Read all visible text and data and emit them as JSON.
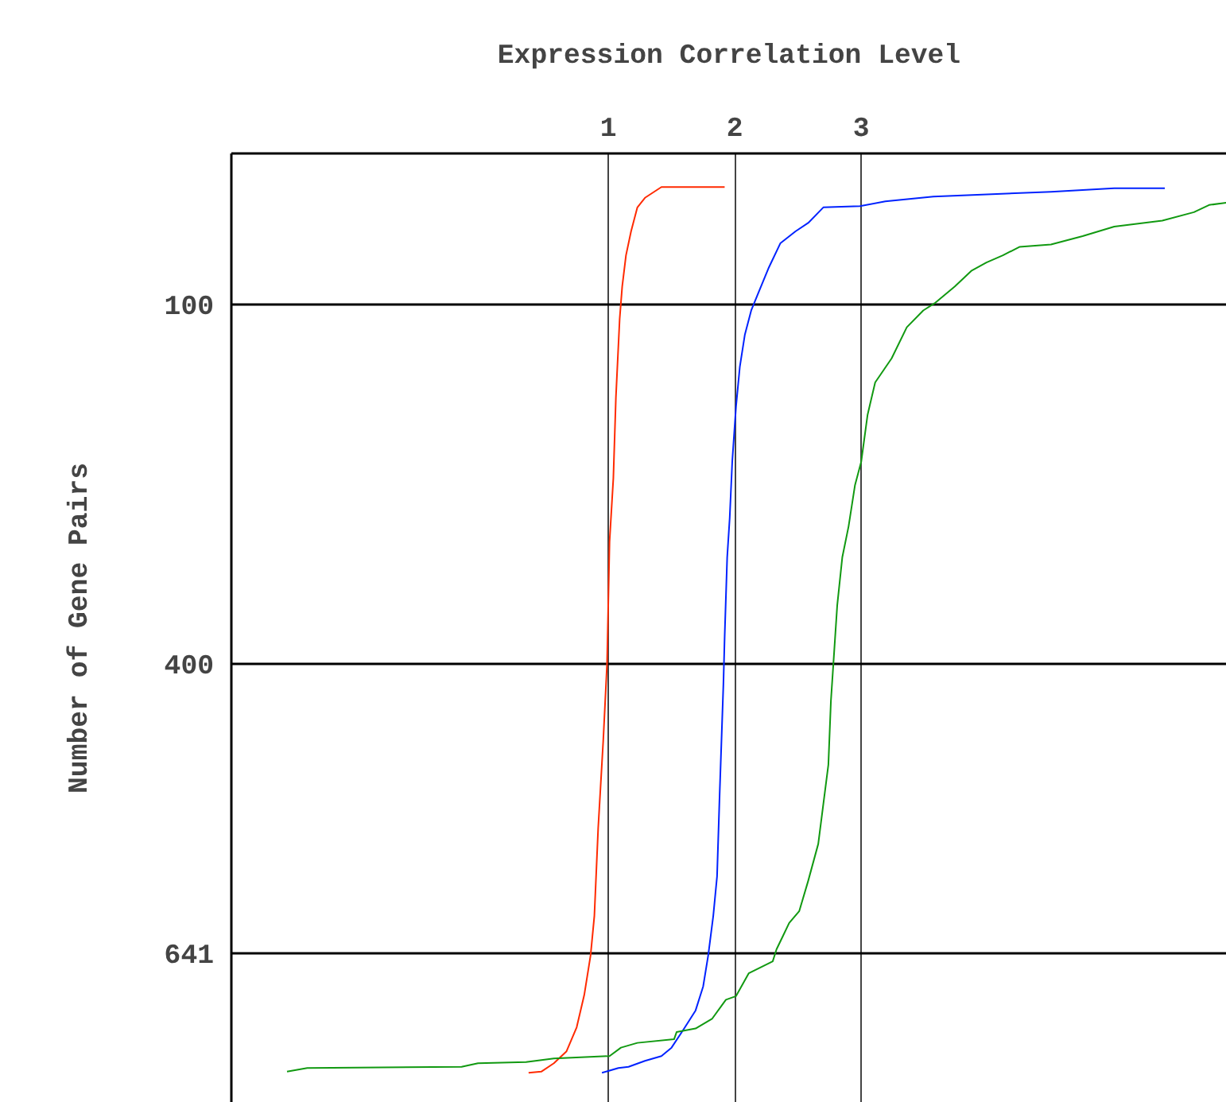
{
  "chart_data": {
    "type": "line",
    "xlabel": "Expression Correlation Level",
    "ylabel": "Number of Gene Pairs",
    "xlim": [
      -1.98,
      5.89
    ],
    "ylim": [
      766,
      -26
    ],
    "xticks": [
      1,
      2,
      3
    ],
    "yticks": [
      100,
      400,
      641
    ],
    "grid": true,
    "marker": "none",
    "line_style": "solid",
    "series": [
      {
        "color": "#ff2a00",
        "x": [
          0.37,
          0.47,
          0.57,
          0.67,
          0.75,
          0.81,
          0.86,
          0.89,
          0.92,
          0.96,
          0.99,
          1.01,
          1.04,
          1.06,
          1.09,
          1.11,
          1.14,
          1.18,
          1.23,
          1.29,
          1.42,
          1.92
        ],
        "values": [
          741,
          740,
          733,
          723,
          703,
          676,
          643,
          610,
          537,
          464,
          400,
          298,
          245,
          178,
          112,
          85,
          59,
          39,
          19,
          11,
          2,
          2
        ]
      },
      {
        "color": "#0022ff",
        "x": [
          0.95,
          1.08,
          1.16,
          1.29,
          1.42,
          1.5,
          1.6,
          1.69,
          1.75,
          1.79,
          1.83,
          1.86,
          1.88,
          1.91,
          1.92,
          1.94,
          1.96,
          1.98,
          2.01,
          2.04,
          2.08,
          2.13,
          2.18,
          2.27,
          2.36,
          2.48,
          2.58,
          2.7,
          2.99,
          3.19,
          3.57,
          4.5,
          5.0,
          5.4
        ],
        "values": [
          741,
          737,
          736,
          731,
          727,
          720,
          704,
          689,
          669,
          643,
          610,
          577,
          510,
          417,
          377,
          311,
          278,
          231,
          185,
          152,
          125,
          105,
          92,
          69,
          49,
          39,
          32,
          19,
          18,
          14,
          10,
          6,
          3,
          3
        ]
      },
      {
        "color": "#119911",
        "x": [
          -1.54,
          -1.38,
          -0.16,
          -0.03,
          0.35,
          0.57,
          1.01,
          1.1,
          1.23,
          1.52,
          1.54,
          1.69,
          1.82,
          1.93,
          2.01,
          2.11,
          2.3,
          2.33,
          2.38,
          2.43,
          2.51,
          2.58,
          2.66,
          2.74,
          2.76,
          2.81,
          2.85,
          2.9,
          2.95,
          3.0,
          3.05,
          3.11,
          3.24,
          3.36,
          3.49,
          3.58,
          3.74,
          3.87,
          3.99,
          4.12,
          4.25,
          4.5,
          4.75,
          5.0,
          5.38,
          5.63,
          5.75,
          5.89
        ],
        "values": [
          740,
          737,
          736,
          733,
          732,
          729,
          727,
          720,
          716,
          713,
          707,
          704,
          696,
          680,
          677,
          658,
          648,
          638,
          627,
          616,
          606,
          581,
          550,
          484,
          431,
          351,
          311,
          285,
          251,
          231,
          192,
          165,
          145,
          119,
          105,
          99,
          85,
          72,
          65,
          59,
          52,
          50,
          43,
          35,
          30,
          23,
          17,
          15
        ]
      }
    ]
  }
}
